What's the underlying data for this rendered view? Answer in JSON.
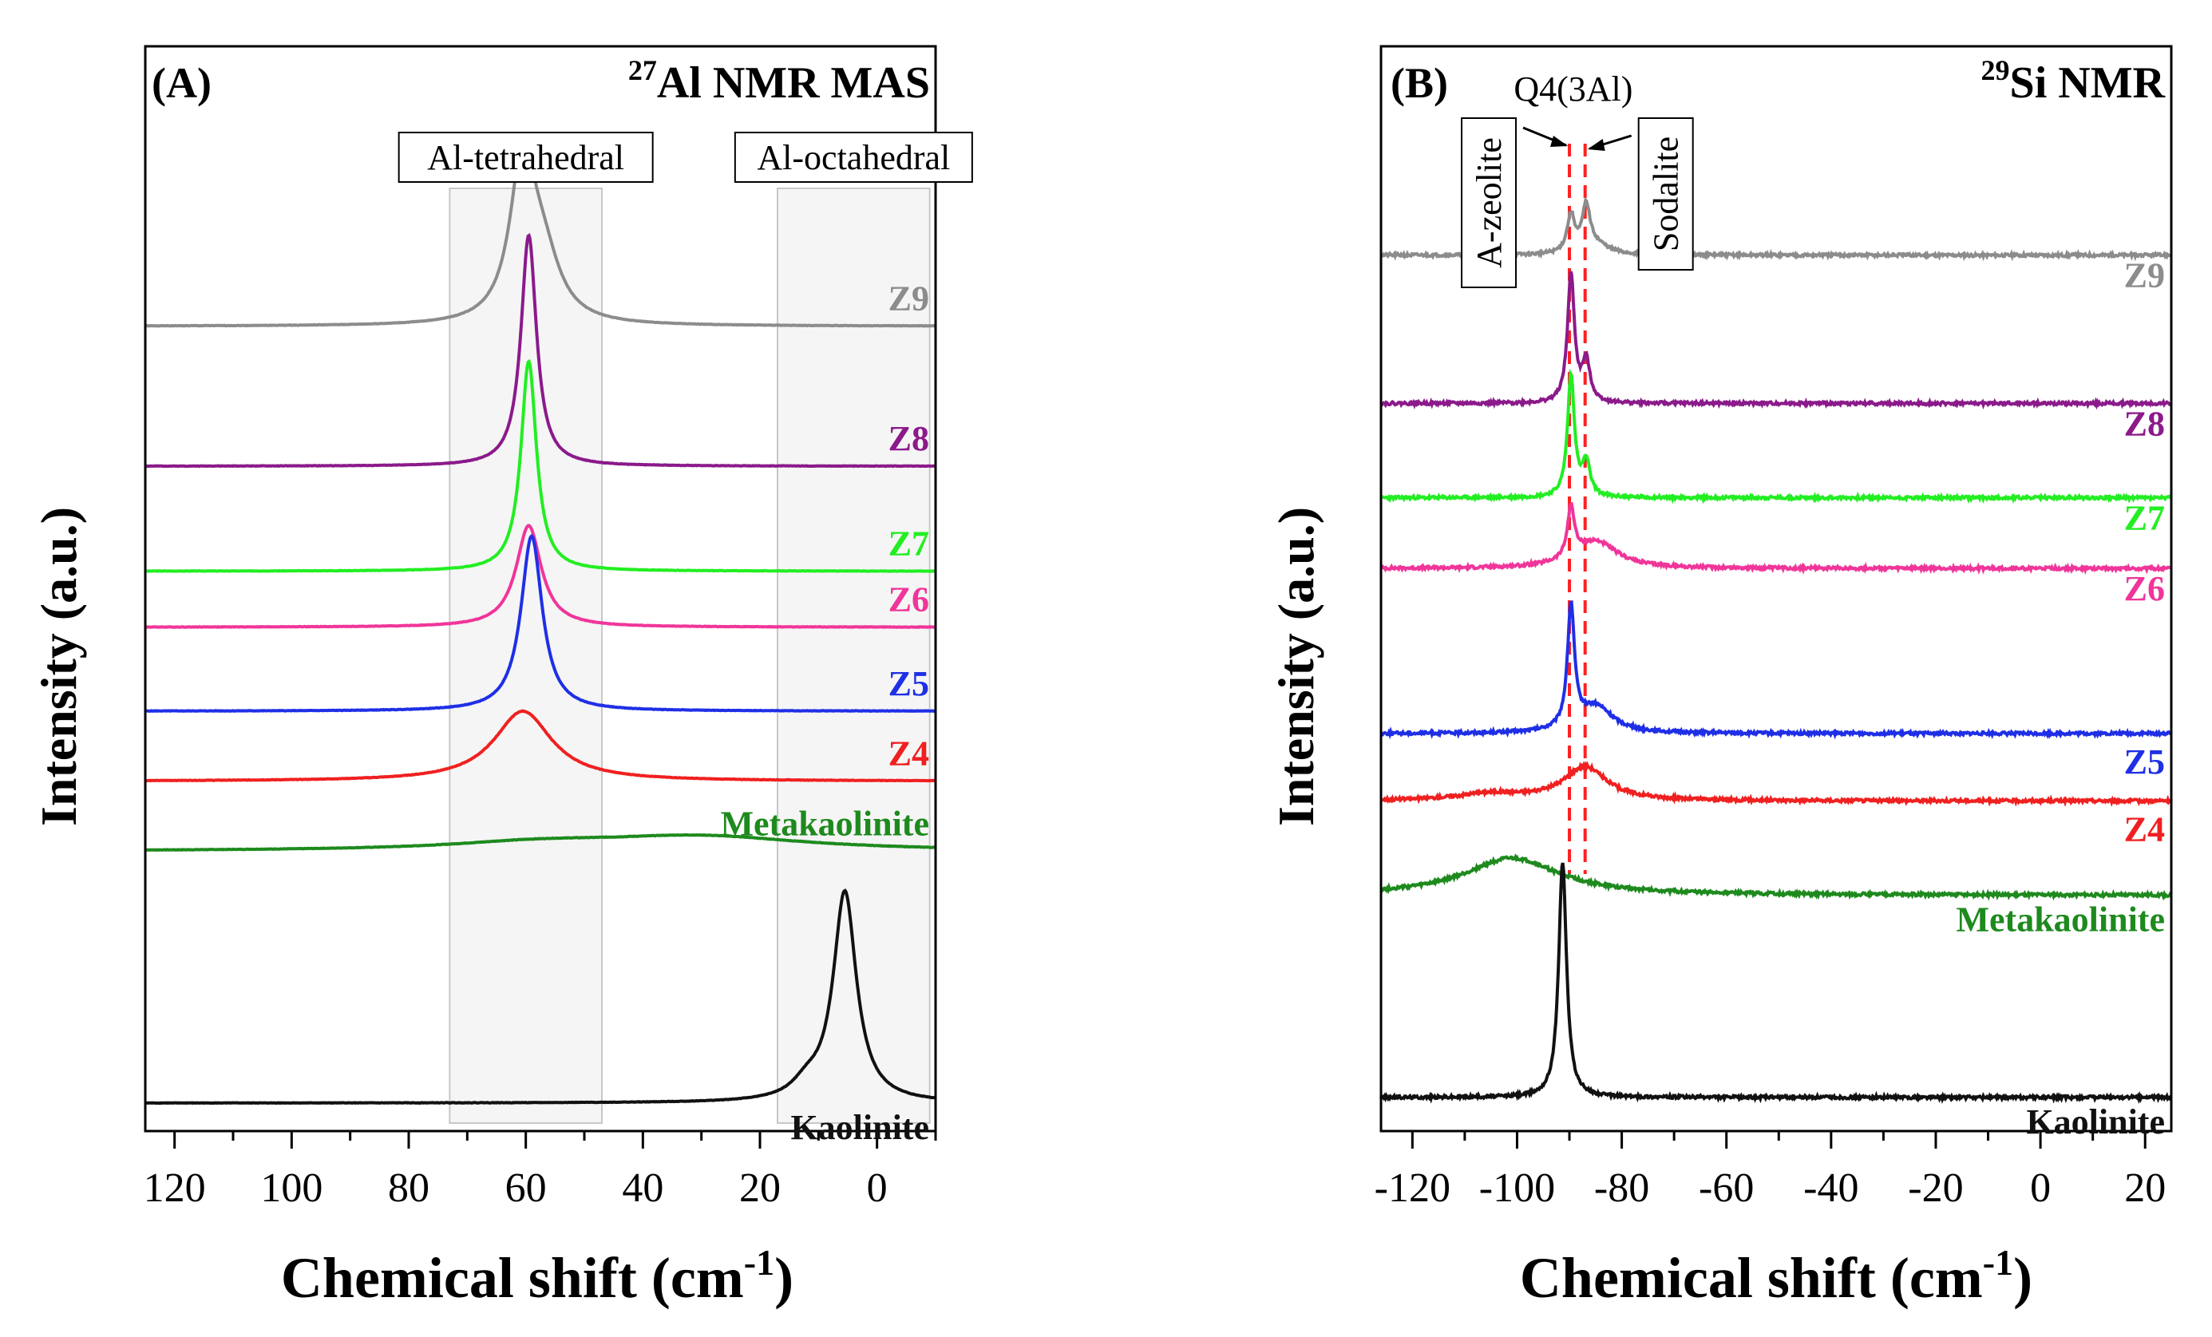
{
  "chart_data": [
    {
      "type": "line",
      "panel": "(A)",
      "title": "27Al NMR MAS",
      "title_sup": "27",
      "title_main": "Al NMR MAS",
      "xlabel_main": "Chemical shift (cm",
      "xlabel_sup": "-1",
      "xlabel_end": ")",
      "xlabel": "Chemical shift (cm-1)",
      "ylabel": "Intensity (a.u.)",
      "xlim": [
        125,
        -10
      ],
      "xticks": [
        120,
        100,
        80,
        60,
        40,
        20,
        0
      ],
      "xtick_labels": [
        "120",
        "100",
        "80",
        "60",
        "40",
        "20",
        "0"
      ],
      "regions": [
        {
          "name": "Al-tetrahedral",
          "range": [
            73,
            47
          ]
        },
        {
          "name": "Al-octahedral",
          "range": [
            17,
            -9
          ]
        }
      ],
      "series": [
        {
          "name": "Z9",
          "color": "#8c8c8c",
          "baseline": 5.5,
          "peaks": [
            {
              "center": 60.5,
              "height": 2.3,
              "width": 2.6
            },
            {
              "center": 57,
              "height": 0.8,
              "width": 3.5
            }
          ]
        },
        {
          "name": "Z8",
          "color": "#8b1a8b",
          "baseline": 3.5,
          "peaks": [
            {
              "center": 59.5,
              "height": 3.3,
              "width": 1.6
            }
          ]
        },
        {
          "name": "Z7",
          "color": "#22ee22",
          "baseline": 2.0,
          "peaks": [
            {
              "center": 59.5,
              "height": 3.0,
              "width": 1.6
            }
          ]
        },
        {
          "name": "Z6",
          "color": "#f0359a",
          "baseline": 1.2,
          "peaks": [
            {
              "center": 59.5,
              "height": 1.45,
              "width": 2.6
            }
          ]
        },
        {
          "name": "Z5",
          "color": "#1f2fe6",
          "baseline": 0.0,
          "peaks": [
            {
              "center": 59.0,
              "height": 2.5,
              "width": 2.2
            }
          ]
        },
        {
          "name": "Z4",
          "color": "#f02020",
          "baseline": -1.0,
          "peaks": [
            {
              "center": 60.5,
              "height": 1.0,
              "width": 6.0
            }
          ]
        },
        {
          "name": "Metakaolinite",
          "color": "#1e8a1e",
          "baseline": -2.0,
          "peaks": [
            {
              "center": 58,
              "height": 0.1,
              "width": 18
            },
            {
              "center": 30,
              "height": 0.2,
              "width": 22
            }
          ]
        },
        {
          "name": "Kaolinite",
          "color": "#111111",
          "baseline": -5.6,
          "peaks": [
            {
              "center": 5.5,
              "height": 3.0,
              "width": 2.4
            },
            {
              "center": 12,
              "height": 0.2,
              "width": 3
            }
          ]
        }
      ]
    },
    {
      "type": "line",
      "panel": "(B)",
      "title": "29Si NMR",
      "title_sup": "29",
      "title_main": "Si NMR",
      "xlabel_main": "Chemical shift (cm",
      "xlabel_sup": "-1",
      "xlabel_end": ")",
      "xlabel": "Chemical shift (cm-1)",
      "ylabel": "Intensity (a.u.)",
      "xlim": [
        -126,
        25
      ],
      "xticks": [
        -120,
        -100,
        -80,
        -60,
        -40,
        -20,
        0,
        20
      ],
      "xtick_labels": [
        "-120",
        "-100",
        "-80",
        "-60",
        "-40",
        "-20",
        "0",
        "20"
      ],
      "annotations": [
        {
          "text": "A-zeolite",
          "x": -90.0
        },
        {
          "text": "Sodalite",
          "x": -87.0
        },
        {
          "text": "Q4(3Al)",
          "x": -88.5
        }
      ],
      "reference_lines": [
        -90.0,
        -87.0
      ],
      "series": [
        {
          "name": "Z9",
          "color": "#8c8c8c",
          "baseline": 6.4,
          "peaks": [
            {
              "center": -89.7,
              "height": 0.55,
              "width": 0.9
            },
            {
              "center": -86.8,
              "height": 0.65,
              "width": 0.9
            },
            {
              "center": -85,
              "height": 0.15,
              "width": 3
            }
          ]
        },
        {
          "name": "Z8",
          "color": "#8b1a8b",
          "baseline": 4.2,
          "peaks": [
            {
              "center": -89.7,
              "height": 1.9,
              "width": 0.8
            },
            {
              "center": -86.8,
              "height": 0.6,
              "width": 0.9
            }
          ]
        },
        {
          "name": "Z7",
          "color": "#22ee22",
          "baseline": 2.8,
          "peaks": [
            {
              "center": -89.7,
              "height": 1.8,
              "width": 0.8
            },
            {
              "center": -86.8,
              "height": 0.5,
              "width": 0.9
            }
          ]
        },
        {
          "name": "Z6",
          "color": "#f0359a",
          "baseline": 1.75,
          "peaks": [
            {
              "center": -89.7,
              "height": 0.75,
              "width": 0.8
            },
            {
              "center": -85,
              "height": 0.4,
              "width": 5
            }
          ]
        },
        {
          "name": "Z5",
          "color": "#1f2fe6",
          "baseline": -0.7,
          "peaks": [
            {
              "center": -89.7,
              "height": 1.8,
              "width": 0.8
            },
            {
              "center": -85,
              "height": 0.4,
              "width": 4
            }
          ]
        },
        {
          "name": "Z4",
          "color": "#f02020",
          "baseline": -1.7,
          "peaks": [
            {
              "center": -87,
              "height": 0.5,
              "width": 5
            },
            {
              "center": -105,
              "height": 0.1,
              "width": 8
            }
          ]
        },
        {
          "name": "Metakaolinite",
          "color": "#1e8a1e",
          "baseline": -3.1,
          "peaks": [
            {
              "center": -101,
              "height": 0.55,
              "width": 11
            }
          ]
        },
        {
          "name": "Kaolinite",
          "color": "#111111",
          "baseline": -6.1,
          "peaks": [
            {
              "center": -91.3,
              "height": 3.5,
              "width": 0.9
            }
          ]
        }
      ]
    }
  ]
}
